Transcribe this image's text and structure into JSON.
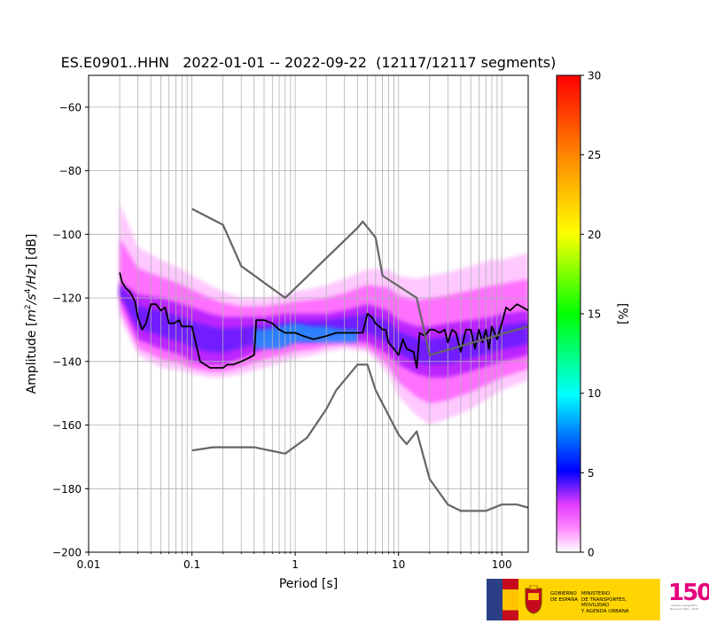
{
  "chart_data": {
    "type": "heatmap",
    "title": "ES.E0901..HHN   2022-01-01 -- 2022-09-22  (12117/12117 segments)",
    "xlabel": "Period [s]",
    "ylabel": "Amplitude [m2/s4/Hz] [dB]",
    "ylabel_parts": {
      "pre": "Amplitude [",
      "m": "m",
      "sup1": "2",
      "mid": "/s",
      "sup2": "4",
      "hz": "/Hz",
      "post": "] [dB]"
    },
    "x_scale": "log",
    "xlim": [
      0.01,
      180
    ],
    "ylim": [
      -200,
      -50
    ],
    "xticks": [
      0.01,
      0.1,
      1,
      10,
      100
    ],
    "xtick_labels": [
      "0.01",
      "0.1",
      "1",
      "10",
      "100"
    ],
    "yticks": [
      -200,
      -180,
      -160,
      -140,
      -120,
      -100,
      -80,
      -60
    ],
    "ytick_labels": [
      "−200",
      "−180",
      "−160",
      "−140",
      "−120",
      "−100",
      "−80",
      "−60"
    ],
    "grid": true,
    "colorbar": {
      "label": "[%]",
      "range": [
        0,
        30
      ],
      "ticks": [
        0,
        5,
        10,
        15,
        20,
        25,
        30
      ],
      "tick_labels": [
        "0",
        "5",
        "10",
        "15",
        "20",
        "25",
        "30"
      ],
      "colormap": "pqlx"
    },
    "density_band": {
      "period": [
        0.02,
        0.03,
        0.05,
        0.08,
        0.1,
        0.15,
        0.2,
        0.3,
        0.5,
        0.8,
        1,
        1.5,
        2,
        3,
        5,
        8,
        10,
        15,
        20,
        30,
        50,
        80,
        100,
        180
      ],
      "outer_top": [
        -90,
        -104,
        -108,
        -111,
        -113,
        -116,
        -118,
        -120,
        -120,
        -119,
        -118,
        -117,
        -116,
        -114,
        -111,
        -111,
        -113,
        -114,
        -113,
        -112,
        -110,
        -108,
        -108,
        -106
      ],
      "outer_bottom": [
        -126,
        -138,
        -142,
        -143,
        -144,
        -145,
        -145,
        -144,
        -142,
        -140,
        -139,
        -138,
        -137,
        -136,
        -137,
        -144,
        -151,
        -157,
        -160,
        -158,
        -155,
        -151,
        -149,
        -146
      ],
      "core_top": [
        -115,
        -119,
        -120,
        -122,
        -123,
        -125,
        -126,
        -126,
        -126,
        -125,
        -125,
        -125,
        -125,
        -124,
        -122,
        -124,
        -127,
        -129,
        -129,
        -128,
        -127,
        -126,
        -125,
        -124
      ],
      "core_bottom": [
        -120,
        -133,
        -136,
        -138,
        -140,
        -141,
        -141,
        -139,
        -136,
        -135,
        -134,
        -134,
        -133,
        -133,
        -134,
        -138,
        -141,
        -144,
        -145,
        -145,
        -143,
        -141,
        -140,
        -138
      ],
      "peak_top": [
        -130,
        -130,
        -129,
        -128,
        -129,
        -129,
        -130,
        -130
      ],
      "peak_bottom": [
        -136,
        -136,
        -136,
        -134,
        -134,
        -134,
        -134,
        -134
      ],
      "peak_period": [
        0.4,
        0.5,
        0.7,
        1,
        1.5,
        2,
        3,
        4
      ]
    },
    "series": [
      {
        "name": "",
        "color": "#000000",
        "x": [
          0.02,
          0.021,
          0.023,
          0.025,
          0.028,
          0.03,
          0.033,
          0.036,
          0.04,
          0.045,
          0.05,
          0.055,
          0.06,
          0.067,
          0.075,
          0.08,
          0.09,
          0.1,
          0.12,
          0.15,
          0.2,
          0.22,
          0.25,
          0.3,
          0.35,
          0.4,
          0.42,
          0.5,
          0.6,
          0.7,
          0.8,
          1,
          1.2,
          1.5,
          2,
          2.5,
          3,
          3.5,
          4,
          4.5,
          5,
          5.5,
          6,
          6.5,
          7,
          7.5,
          8,
          9,
          10,
          11,
          12,
          14,
          15,
          16,
          18,
          20,
          22,
          25,
          28,
          30,
          33,
          36,
          40,
          45,
          50,
          55,
          60,
          65,
          70,
          75,
          80,
          90,
          100,
          110,
          120,
          140,
          160,
          180
        ],
        "y": [
          -112,
          -115,
          -117,
          -118,
          -121,
          -126,
          -130,
          -128,
          -122,
          -122,
          -124,
          -123,
          -128,
          -128,
          -127,
          -129,
          -129,
          -129,
          -140,
          -142,
          -142,
          -141,
          -141,
          -140,
          -139,
          -138,
          -127,
          -127,
          -128,
          -130,
          -131,
          -131,
          -132,
          -133,
          -132,
          -131,
          -131,
          -131,
          -131,
          -131,
          -125,
          -126,
          -128,
          -129,
          -130,
          -130,
          -134,
          -136,
          -138,
          -133,
          -136,
          -137,
          -142,
          -131,
          -132,
          -130,
          -130,
          -131,
          -130,
          -134,
          -130,
          -131,
          -137,
          -130,
          -130,
          -136,
          -130,
          -134,
          -130,
          -136,
          -129,
          -133,
          -128,
          -123,
          -124,
          -122,
          -123,
          -124
        ]
      },
      {
        "name": "",
        "color": "#666666",
        "x": [
          0.1,
          0.2,
          0.3,
          0.8,
          4,
          4.5,
          6,
          7,
          15,
          20,
          180
        ],
        "y": [
          -92,
          -97,
          -110,
          -120,
          -98,
          -96,
          -101,
          -113,
          -120,
          -138,
          -129
        ]
      },
      {
        "name": "",
        "color": "#666666",
        "x": [
          0.1,
          0.16,
          0.4,
          0.8,
          1.3,
          2,
          2.5,
          4,
          5,
          6,
          10,
          12,
          15,
          20,
          30,
          40,
          60,
          70,
          100,
          140,
          180
        ],
        "y": [
          -168,
          -167,
          -167,
          -169,
          -164,
          -155,
          -149,
          -141,
          -141,
          -149,
          -163,
          -166,
          -162,
          -177,
          -185,
          -187,
          -187,
          -187,
          -185,
          -185,
          -186
        ]
      }
    ]
  },
  "footer": {
    "gov_text": "GOBIERNO\nDE ESPAÑA",
    "ministry_text": "MINISTERIO\nDE TRANSPORTES, MOVILIDAD\nY AGENDA URBANA",
    "logo_number": "150",
    "logo_sub": "Instituto Geográfico Nacional 1870 - 2020",
    "brand_yellow": "#ffd400",
    "brand_magenta": "#e5007e"
  }
}
